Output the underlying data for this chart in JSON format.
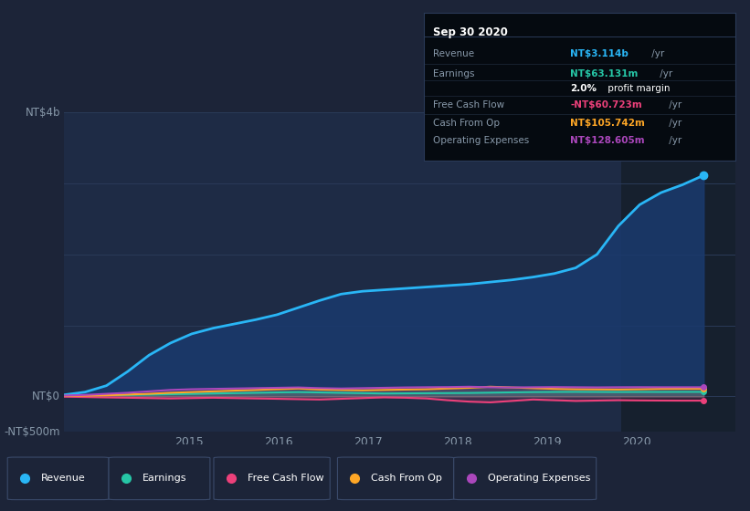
{
  "bg_color": "#1c2438",
  "plot_bg_color": "#1e2b45",
  "plot_bg_color_right": "#16202e",
  "grid_color": "#2a3a58",
  "text_color": "#8899aa",
  "title_color": "#ffffff",
  "ylabel_NT4b": "NT$4b",
  "ylabel_NT0": "NT$0",
  "ylabel_NTneg500m": "-NT$500m",
  "x_labels": [
    "2015",
    "2016",
    "2017",
    "2018",
    "2019",
    "2020"
  ],
  "legend_items": [
    {
      "label": "Revenue",
      "color": "#29b6f6"
    },
    {
      "label": "Earnings",
      "color": "#26c6a6"
    },
    {
      "label": "Free Cash Flow",
      "color": "#ec407a"
    },
    {
      "label": "Cash From Op",
      "color": "#ffa726"
    },
    {
      "label": "Operating Expenses",
      "color": "#ab47bc"
    }
  ],
  "info_box": {
    "title": "Sep 30 2020",
    "rows": [
      {
        "label": "Revenue",
        "value": "NT$3.114b",
        "suffix": " /yr",
        "value_color": "#29b6f6"
      },
      {
        "label": "Earnings",
        "value": "NT$63.131m",
        "suffix": " /yr",
        "value_color": "#26c6a6"
      },
      {
        "label": "",
        "value": "2.0%",
        "suffix": " profit margin",
        "value_color": "#ffffff",
        "bold_val": true
      },
      {
        "label": "Free Cash Flow",
        "value": "-NT$60.723m",
        "suffix": " /yr",
        "value_color": "#ec407a"
      },
      {
        "label": "Cash From Op",
        "value": "NT$105.742m",
        "suffix": " /yr",
        "value_color": "#ffa726"
      },
      {
        "label": "Operating Expenses",
        "value": "NT$128.605m",
        "suffix": " /yr",
        "value_color": "#ab47bc"
      }
    ]
  },
  "revenue": [
    20,
    60,
    150,
    350,
    580,
    750,
    880,
    960,
    1020,
    1080,
    1150,
    1250,
    1350,
    1440,
    1480,
    1500,
    1520,
    1540,
    1560,
    1580,
    1610,
    1640,
    1680,
    1730,
    1810,
    2000,
    2400,
    2700,
    2870,
    2980,
    3114
  ],
  "earnings": [
    5,
    10,
    15,
    20,
    25,
    30,
    35,
    40,
    45,
    50,
    55,
    60,
    55,
    50,
    45,
    40,
    42,
    44,
    46,
    48,
    52,
    56,
    60,
    62,
    63,
    62,
    61,
    62,
    62,
    63,
    63
  ],
  "free_cash_flow": [
    -5,
    -10,
    -15,
    -20,
    -25,
    -30,
    -25,
    -20,
    -25,
    -30,
    -35,
    -40,
    -45,
    -35,
    -25,
    -15,
    -20,
    -30,
    -55,
    -75,
    -85,
    -65,
    -45,
    -55,
    -65,
    -60,
    -55,
    -58,
    -60,
    -61,
    -61
  ],
  "cash_from_op": [
    5,
    10,
    15,
    25,
    35,
    50,
    60,
    70,
    80,
    90,
    100,
    110,
    95,
    90,
    85,
    90,
    95,
    100,
    110,
    120,
    135,
    125,
    115,
    105,
    100,
    98,
    96,
    100,
    105,
    106,
    106
  ],
  "operating_expenses": [
    10,
    20,
    35,
    50,
    70,
    90,
    100,
    105,
    110,
    115,
    120,
    125,
    115,
    110,
    115,
    120,
    125,
    128,
    130,
    135,
    128,
    125,
    128,
    130,
    128,
    126,
    128,
    129,
    128,
    128,
    128
  ],
  "ylim_min": -500,
  "ylim_max": 4000,
  "xmin": 2013.6,
  "xmax": 2021.1,
  "x_split": 2019.83
}
